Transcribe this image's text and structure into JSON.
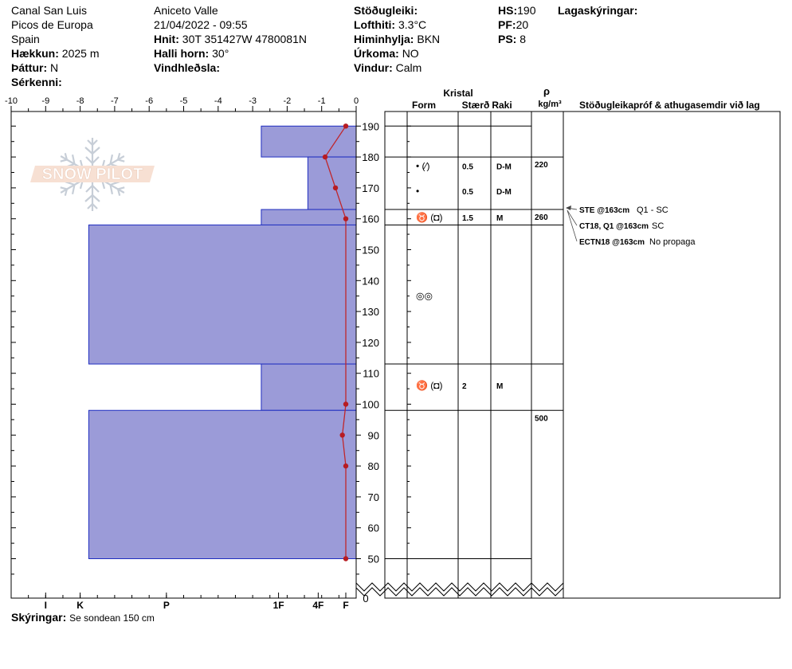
{
  "header": {
    "col1": {
      "location": "Canal San Luis",
      "region": "Picos de Europa",
      "country": "Spain",
      "elevation_label": "Hækkun:",
      "elevation_value": "2025 m",
      "aspect_label": "Þáttur:",
      "aspect_value": "N",
      "features_label": "Sérkenni:"
    },
    "col2": {
      "observer": "Aniceto Valle",
      "datetime": "21/04/2022 - 09:55",
      "coords_label": "Hnit:",
      "coords_value": "30T 351427W 4780081N",
      "slope_label": "Halli horn:",
      "slope_value": "30°",
      "wind_loading_label": "Vindhleðsla:"
    },
    "col3": {
      "stability_label": "Stöðugleiki:",
      "air_temp_label": "Lofthiti:",
      "air_temp_value": "3.3°C",
      "sky_label": "Himinhylja:",
      "sky_value": "BKN",
      "precip_label": "Úrkoma:",
      "precip_value": "NO",
      "wind_label": "Vindur:",
      "wind_value": "Calm"
    },
    "col4": {
      "hs_label": "HS:",
      "hs_value": "190",
      "pf_label": "PF:",
      "pf_value": "20",
      "ps_label": "PS:",
      "ps_value": "8"
    },
    "legend_title": "Lagaskýringar:"
  },
  "footer": {
    "label": "Skýringar:",
    "value": "Se sondean 150 cm"
  },
  "logo_text": "SNOW PILOT",
  "table_headers": {
    "crystal": "Kristal",
    "form": "Form",
    "size": "Stærð",
    "moisture": "Raki",
    "rho": "ρ",
    "density_unit": "kg/m³",
    "tests": "Stöðugleikapróf & athugasemdir við lag"
  },
  "chart_data": {
    "type": "bar",
    "temp_axis": {
      "ticks": [
        "-10",
        "-9",
        "-8",
        "-7",
        "-6",
        "-5",
        "-4",
        "-3",
        "-2",
        "-1",
        "0"
      ],
      "range": [
        -10,
        0
      ]
    },
    "height_axis": {
      "ticks": [
        "50",
        "60",
        "70",
        "80",
        "90",
        "100",
        "110",
        "120",
        "130",
        "140",
        "150",
        "160",
        "170",
        "180",
        "190"
      ],
      "range": [
        40,
        190
      ],
      "zero_label": "0"
    },
    "hardness_axis": {
      "labels": [
        "I",
        "K",
        "P",
        "1F",
        "4F",
        "F"
      ]
    },
    "hardness_layers": [
      {
        "top": 190,
        "bottom": 180,
        "hardness_value": -2.75
      },
      {
        "top": 180,
        "bottom": 163,
        "hardness_value": -1.4
      },
      {
        "top": 163,
        "bottom": 158,
        "hardness_value": -2.75
      },
      {
        "top": 158,
        "bottom": 113,
        "hardness_value": -7.75
      },
      {
        "top": 113,
        "bottom": 98,
        "hardness_value": -2.75
      },
      {
        "top": 98,
        "bottom": 50,
        "hardness_value": -7.75
      }
    ],
    "temperature_profile": [
      {
        "height": 190,
        "temp": -0.3
      },
      {
        "height": 180,
        "temp": -0.9
      },
      {
        "height": 170,
        "temp": -0.6
      },
      {
        "height": 160,
        "temp": -0.3
      },
      {
        "height": 100,
        "temp": -0.3
      },
      {
        "height": 90,
        "temp": -0.4
      },
      {
        "height": 80,
        "temp": -0.3
      },
      {
        "height": 50,
        "temp": -0.3
      }
    ],
    "layer_boundaries": [
      190,
      180,
      163,
      158,
      113,
      98,
      50
    ],
    "layers": [
      {
        "center": 177,
        "form": "• (⁄)",
        "size": "0.5",
        "moisture": "D-M"
      },
      {
        "center": 169,
        "form": "•",
        "size": "0.5",
        "moisture": "D-M"
      },
      {
        "center": 160.5,
        "form": "♉ (◘)",
        "size": "1.5",
        "moisture": "M"
      },
      {
        "center": 135,
        "form": "◎◎",
        "size": "",
        "moisture": ""
      },
      {
        "center": 106,
        "form": "♉ (◘)",
        "size": "2",
        "moisture": "M"
      }
    ],
    "densities": [
      {
        "height": 180,
        "value": "220"
      },
      {
        "height": 163,
        "value": "260"
      },
      {
        "height": 98,
        "value": "500"
      }
    ],
    "tests": [
      {
        "name": "STE @163cm",
        "result": "Q1 - SC"
      },
      {
        "name": "CT18, Q1 @163cm",
        "result": "SC"
      },
      {
        "name": "ECTN18 @163cm",
        "result": "No propaga"
      }
    ]
  }
}
